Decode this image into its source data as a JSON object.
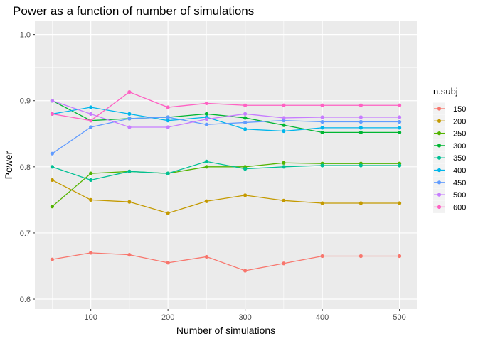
{
  "chart_data": {
    "type": "line",
    "title": "Power as a function of number of simulations",
    "xlabel": "Number of simulations",
    "ylabel": "Power",
    "xlim": [
      27.5,
      522.5
    ],
    "ylim": [
      0.585,
      1.02
    ],
    "x_ticks": [
      100,
      200,
      300,
      400,
      500
    ],
    "y_ticks": [
      0.6,
      0.7,
      0.8,
      0.9,
      1.0
    ],
    "x_tick_labels": [
      "100",
      "200",
      "300",
      "400",
      "500"
    ],
    "y_tick_labels": [
      "0.6",
      "0.7",
      "0.8",
      "0.9",
      "1.0"
    ],
    "grid": true,
    "legend": {
      "title": "n.subj",
      "position": "right"
    },
    "x": [
      50,
      100,
      150,
      200,
      250,
      300,
      350,
      400,
      450,
      500
    ],
    "series": [
      {
        "name": "150",
        "color": "#F8766D",
        "values": [
          0.66,
          0.67,
          0.667,
          0.655,
          0.664,
          0.643,
          0.654,
          0.665,
          0.665,
          0.665
        ]
      },
      {
        "name": "200",
        "color": "#C49A00",
        "values": [
          0.78,
          0.75,
          0.747,
          0.73,
          0.748,
          0.757,
          0.749,
          0.745,
          0.745,
          0.745
        ]
      },
      {
        "name": "250",
        "color": "#53B400",
        "values": [
          0.74,
          0.79,
          0.793,
          0.79,
          0.8,
          0.8,
          0.806,
          0.805,
          0.805,
          0.805
        ]
      },
      {
        "name": "300",
        "color": "#00B632",
        "values": [
          0.9,
          0.87,
          0.873,
          0.875,
          0.88,
          0.874,
          0.863,
          0.852,
          0.852,
          0.852
        ]
      },
      {
        "name": "350",
        "color": "#00C094",
        "values": [
          0.8,
          0.78,
          0.793,
          0.79,
          0.808,
          0.797,
          0.8,
          0.802,
          0.802,
          0.802
        ]
      },
      {
        "name": "400",
        "color": "#00B6EB",
        "values": [
          0.88,
          0.89,
          0.88,
          0.87,
          0.875,
          0.857,
          0.854,
          0.859,
          0.859,
          0.859
        ]
      },
      {
        "name": "450",
        "color": "#619CFF",
        "values": [
          0.82,
          0.86,
          0.873,
          0.875,
          0.864,
          0.867,
          0.87,
          0.868,
          0.868,
          0.868
        ]
      },
      {
        "name": "500",
        "color": "#C77CFF",
        "values": [
          0.9,
          0.88,
          0.86,
          0.86,
          0.872,
          0.88,
          0.874,
          0.875,
          0.875,
          0.875
        ]
      },
      {
        "name": "600",
        "color": "#FF61C3",
        "values": [
          0.88,
          0.87,
          0.913,
          0.89,
          0.896,
          0.893,
          0.893,
          0.893,
          0.893,
          0.893
        ]
      }
    ]
  }
}
